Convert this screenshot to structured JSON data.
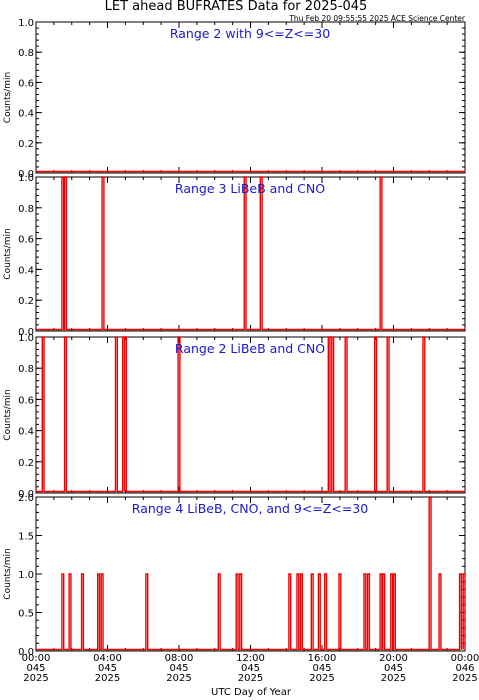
{
  "title": "LET ahead BUFRATES Data for 2025-045",
  "timestamp": "Thu Feb 20 09:55:55 2025 ACE Science Center",
  "xlabel": "UTC Day of Year",
  "x_ticks": [
    {
      "hour": 0,
      "time": "00:00",
      "doy": "045",
      "year": "2025"
    },
    {
      "hour": 4,
      "time": "04:00",
      "doy": "045",
      "year": "2025"
    },
    {
      "hour": 8,
      "time": "08:00",
      "doy": "045",
      "year": "2025"
    },
    {
      "hour": 12,
      "time": "12:00",
      "doy": "045",
      "year": "2025"
    },
    {
      "hour": 16,
      "time": "16:00",
      "doy": "045",
      "year": "2025"
    },
    {
      "hour": 20,
      "time": "20:00",
      "doy": "045",
      "year": "2025"
    },
    {
      "hour": 24,
      "time": "00:00",
      "doy": "046",
      "year": "2025"
    }
  ],
  "colors": {
    "data": "#ee0000",
    "panel_label": "#1a1acc",
    "axes": "#000000"
  },
  "chart_data": [
    {
      "type": "line",
      "title": "Range 2 with 9<=Z<=30",
      "ylabel": "Counts/min",
      "xlim": [
        0,
        24
      ],
      "ylim": [
        0,
        1
      ],
      "yticks": [
        "0.0",
        "0.2",
        "0.4",
        "0.6",
        "0.8",
        "1.0"
      ],
      "spikes": []
    },
    {
      "type": "line",
      "title": "Range 3 LiBeB and CNO",
      "ylabel": "Counts/min",
      "xlim": [
        0,
        24
      ],
      "ylim": [
        0,
        1
      ],
      "yticks": [
        "0.0",
        "0.2",
        "0.4",
        "0.6",
        "0.8",
        "1.0"
      ],
      "spikes": [
        {
          "hour": 1.5,
          "value": 1
        },
        {
          "hour": 1.65,
          "value": 1
        },
        {
          "hour": 3.75,
          "value": 1
        },
        {
          "hour": 11.7,
          "value": 1
        },
        {
          "hour": 12.6,
          "value": 1
        },
        {
          "hour": 19.3,
          "value": 1
        }
      ]
    },
    {
      "type": "line",
      "title": "Range 2 LiBeB and CNO",
      "ylabel": "Counts/min",
      "xlim": [
        0,
        24
      ],
      "ylim": [
        0,
        1
      ],
      "yticks": [
        "0.0",
        "0.2",
        "0.4",
        "0.6",
        "0.8",
        "1.0"
      ],
      "spikes": [
        {
          "hour": 0.4,
          "value": 1
        },
        {
          "hour": 1.65,
          "value": 1
        },
        {
          "hour": 4.5,
          "value": 1
        },
        {
          "hour": 4.9,
          "value": 1
        },
        {
          "hour": 5.0,
          "value": 1
        },
        {
          "hour": 8.0,
          "value": 1
        },
        {
          "hour": 16.4,
          "value": 1
        },
        {
          "hour": 16.6,
          "value": 1
        },
        {
          "hour": 17.35,
          "value": 1
        },
        {
          "hour": 19.0,
          "value": 1
        },
        {
          "hour": 19.7,
          "value": 1
        },
        {
          "hour": 21.7,
          "value": 1
        }
      ]
    },
    {
      "type": "line",
      "title": "Range 4 LiBeB, CNO, and 9<=Z<=30",
      "ylabel": "Counts/min",
      "xlim": [
        0,
        24
      ],
      "ylim": [
        0,
        2
      ],
      "yticks": [
        "0.0",
        "0.5",
        "1.0",
        "1.5",
        "2.0"
      ],
      "spikes": [
        {
          "hour": 1.5,
          "value": 1
        },
        {
          "hour": 1.9,
          "value": 1
        },
        {
          "hour": 2.6,
          "value": 1
        },
        {
          "hour": 3.5,
          "value": 1
        },
        {
          "hour": 3.7,
          "value": 1
        },
        {
          "hour": 6.2,
          "value": 1
        },
        {
          "hour": 10.25,
          "value": 1
        },
        {
          "hour": 11.25,
          "value": 1
        },
        {
          "hour": 11.45,
          "value": 1
        },
        {
          "hour": 14.2,
          "value": 1
        },
        {
          "hour": 14.65,
          "value": 1
        },
        {
          "hour": 14.85,
          "value": 1
        },
        {
          "hour": 15.45,
          "value": 1
        },
        {
          "hour": 15.85,
          "value": 1
        },
        {
          "hour": 16.2,
          "value": 1
        },
        {
          "hour": 17.0,
          "value": 1
        },
        {
          "hour": 18.4,
          "value": 1
        },
        {
          "hour": 18.6,
          "value": 1
        },
        {
          "hour": 19.3,
          "value": 1
        },
        {
          "hour": 19.45,
          "value": 1
        },
        {
          "hour": 19.9,
          "value": 1
        },
        {
          "hour": 20.05,
          "value": 1
        },
        {
          "hour": 22.05,
          "value": 2
        },
        {
          "hour": 22.6,
          "value": 1
        },
        {
          "hour": 23.75,
          "value": 1
        },
        {
          "hour": 23.85,
          "value": 1
        },
        {
          "hour": 23.95,
          "value": 1
        }
      ]
    }
  ]
}
